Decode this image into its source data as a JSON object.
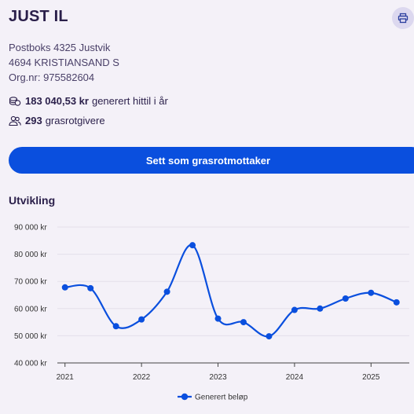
{
  "org": {
    "name": "JUST IL",
    "address_line1": "Postboks 4325 Justvik",
    "address_line2": "4694 KRISTIANSAND S",
    "orgnr": "Org.nr: 975582604"
  },
  "stats": {
    "amount_value": "183 040,53 kr",
    "amount_label": "generert hittil i år",
    "givers_value": "293",
    "givers_label": "grasrotgivere"
  },
  "actions": {
    "print_icon": "printer-icon",
    "cta_label": "Sett som grasrotmottaker"
  },
  "section": {
    "title": "Utvikling"
  },
  "colors": {
    "accent": "#0a4fde",
    "text": "#2a1f4a",
    "background": "#f4f1f8"
  },
  "chart_data": {
    "type": "line",
    "x": [
      "2021-01",
      "2021-05",
      "2021-09",
      "2022-01",
      "2022-05",
      "2022-09",
      "2023-01",
      "2023-05",
      "2023-09",
      "2024-01",
      "2024-05",
      "2024-09",
      "2025-01",
      "2025-05"
    ],
    "series": [
      {
        "name": "Generert beløp",
        "values": [
          67800,
          67500,
          53500,
          56000,
          66200,
          83300,
          56300,
          55000,
          49800,
          59500,
          60000,
          63700,
          65800,
          62300
        ],
        "color": "#0a4fde"
      }
    ],
    "ylim": [
      40000,
      90000
    ],
    "yticks": [
      "40 000 kr",
      "50 000 kr",
      "60 000 kr",
      "70 000 kr",
      "80 000 kr",
      "90 000 kr"
    ],
    "xticks": [
      "2021",
      "2022",
      "2023",
      "2024",
      "2025"
    ],
    "legend_position": "bottom",
    "grid": true
  }
}
